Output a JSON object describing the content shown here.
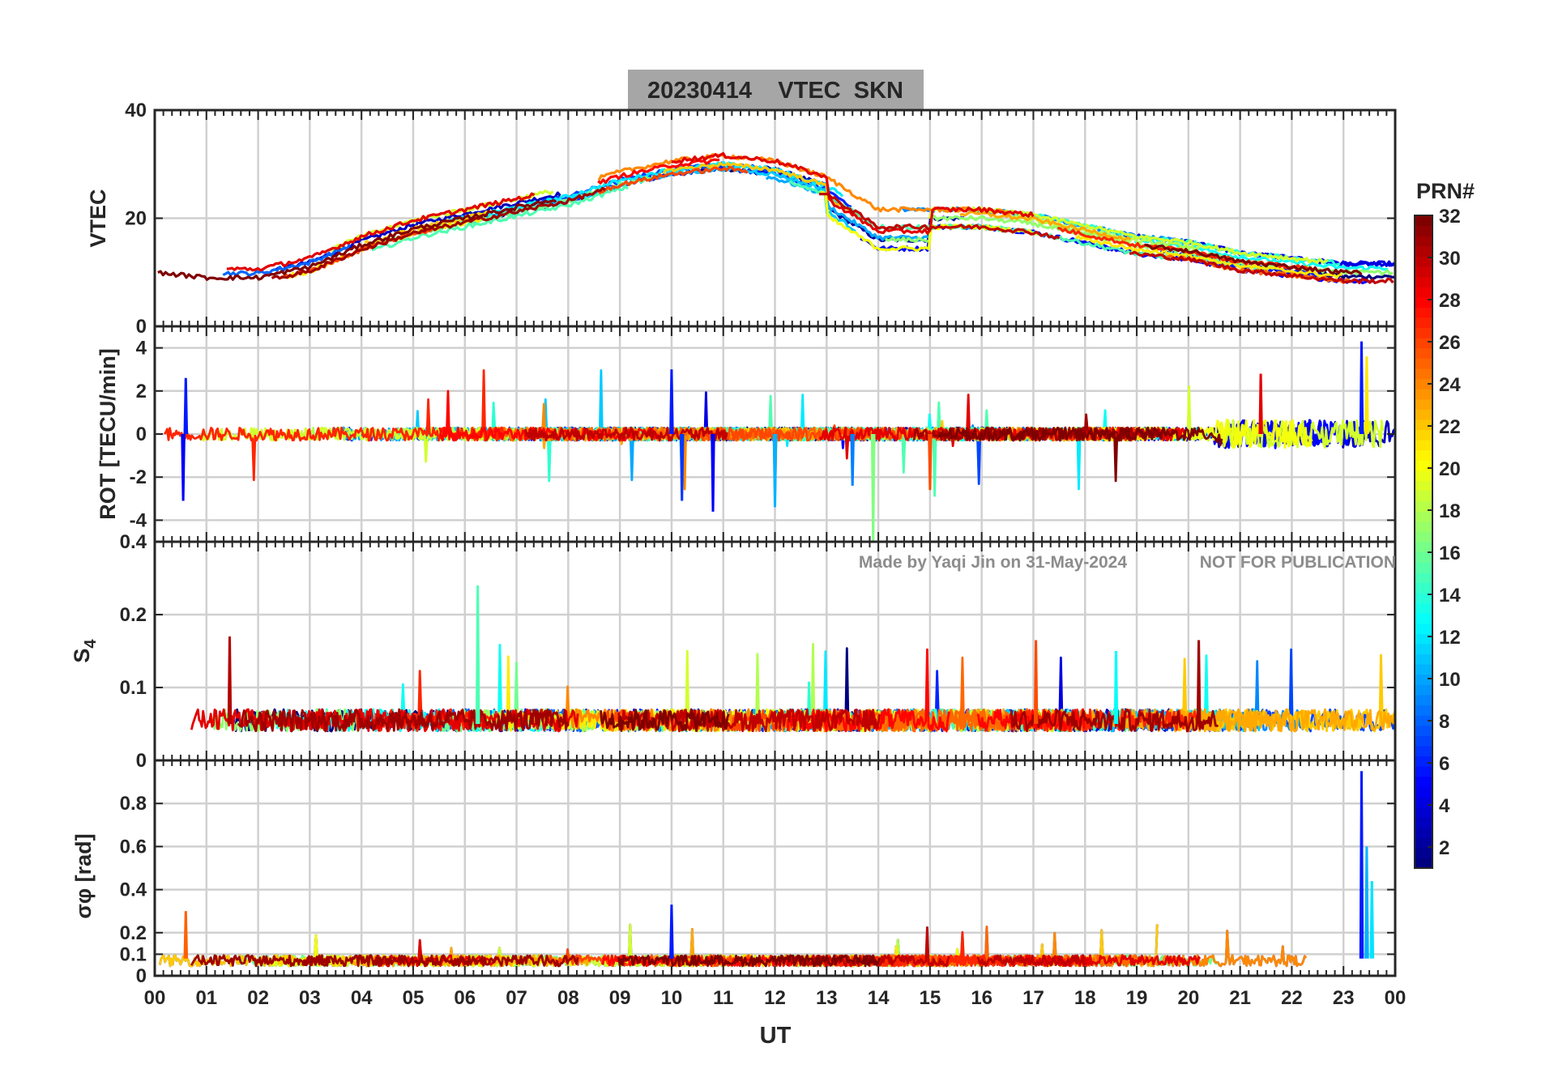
{
  "title": "20230414    VTEC  SKN",
  "watermark": {
    "credit": "Made by Yaqi Jin on 31-May-2024",
    "notice": "NOT FOR PUBLICATION"
  },
  "colors": {
    "title_box": "#a6a6a6",
    "watermark": "#8c8c8c",
    "grid": "#d0d0d0",
    "axes": "#262626"
  },
  "chart_data": [
    {
      "type": "line",
      "panel": "VTEC",
      "ylabel": "VTEC",
      "ylim": [
        0,
        40
      ],
      "yticks": [
        "0",
        "20",
        "40"
      ],
      "yticks_values": [
        0,
        20,
        40
      ],
      "xlim": [
        0,
        24
      ],
      "series_description": "VTEC per satellite PRN 1-32, diurnal curve: ~10 TECU at 00-03 UT, rising to ~30-33 TECU near 10-12 UT, ~18-22 at 14-17 UT, ~10 TECU at 22-24 UT",
      "envelope": {
        "x": [
          0,
          1,
          2,
          3,
          4,
          5,
          6,
          7,
          8,
          9,
          10,
          11,
          12,
          13,
          14,
          15,
          16,
          17,
          18,
          19,
          20,
          21,
          22,
          23,
          24
        ],
        "y": [
          10,
          9,
          9,
          11,
          15,
          18,
          20,
          22,
          24,
          27,
          29,
          30,
          29,
          26,
          20,
          20,
          20,
          19,
          17,
          15,
          14,
          12,
          11,
          10,
          10
        ]
      }
    },
    {
      "type": "line",
      "panel": "ROT",
      "ylabel": "ROT [TECU/min]",
      "ylim": [
        -5,
        5
      ],
      "yticks": [
        "-4",
        "-2",
        "0",
        "2",
        "4"
      ],
      "yticks_values": [
        -4,
        -2,
        0,
        2,
        4
      ],
      "xlim": [
        0,
        24
      ],
      "series_description": "Rate of TEC per PRN, mostly within +/-0.5 TECU/min, spikes to ~2.6 near 00:30, ~3 near 10 UT, ~-5 near 14 UT, ~4.3 near 23:20 UT"
    },
    {
      "type": "line",
      "panel": "S4",
      "ylabel": "S4",
      "ylim": [
        0,
        0.3
      ],
      "yticks": [
        "0",
        "0.1",
        "0.2"
      ],
      "yticks_values": [
        0,
        0.1,
        0.2
      ],
      "extra_tick_label": "0.4",
      "xlim": [
        0,
        24
      ],
      "series_description": "S4 amplitude scintillation per PRN, baseline ~0.04-0.08, spikes ~0.17 near 01:30, ~0.24 near 06:15, ~0.16 near 17 UT and 20:15 UT"
    },
    {
      "type": "line",
      "panel": "sigma_phi",
      "ylabel": "σφ [rad]",
      "ylim": [
        0,
        1.0
      ],
      "yticks": [
        "0",
        "0.1",
        "0.2",
        "0.4",
        "0.6",
        "0.8"
      ],
      "yticks_values": [
        0,
        0.1,
        0.2,
        0.4,
        0.6,
        0.8
      ],
      "xlim": [
        0,
        24
      ],
      "xticks": [
        "00",
        "01",
        "02",
        "03",
        "04",
        "05",
        "06",
        "07",
        "08",
        "09",
        "10",
        "11",
        "12",
        "13",
        "14",
        "15",
        "16",
        "17",
        "18",
        "19",
        "20",
        "21",
        "22",
        "23",
        "00"
      ],
      "xlabel": "UT",
      "series_description": "Phase scintillation per PRN, baseline ~0.05-0.1 rad, peaks ~0.3 near 00:30 and 10 UT, ~0.95 near 23:20 UT"
    }
  ],
  "colorbar": {
    "label": "PRN#",
    "range": [
      1,
      32
    ],
    "ticks": [
      "2",
      "4",
      "6",
      "8",
      "10",
      "12",
      "14",
      "16",
      "18",
      "20",
      "22",
      "24",
      "26",
      "28",
      "30",
      "32"
    ],
    "ticks_values": [
      2,
      4,
      6,
      8,
      10,
      12,
      14,
      16,
      18,
      20,
      22,
      24,
      26,
      28,
      30,
      32
    ],
    "colormap": "jet"
  }
}
